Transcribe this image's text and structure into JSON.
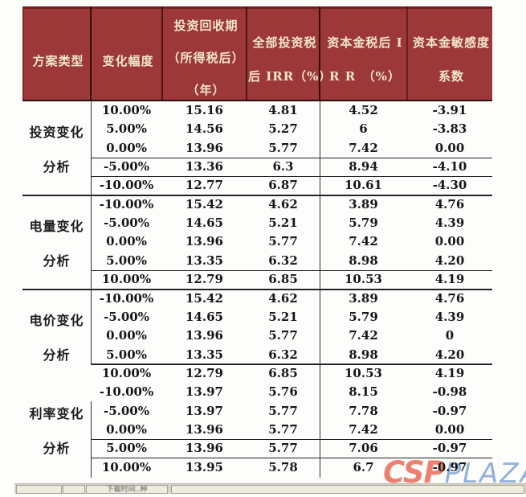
{
  "table": {
    "columns": [
      {
        "lines": [
          "方案类型"
        ]
      },
      {
        "lines": [
          "变化幅度"
        ]
      },
      {
        "lines": [
          "投资回收期",
          "（所得税后）",
          "（年）"
        ]
      },
      {
        "lines": [
          "全部投资税",
          "后 IRR（%）"
        ]
      },
      {
        "lines": [
          "资本金税后 I",
          "R R　（%）"
        ]
      },
      {
        "lines": [
          "资本金敏感度",
          "系数"
        ]
      }
    ],
    "groups": [
      {
        "label_lines": [
          "投资变化",
          "分析"
        ],
        "rows": [
          [
            "10.00%",
            "15.16",
            "4.81",
            "4.52",
            "-3.91"
          ],
          [
            "5.00%",
            "14.56",
            "5.27",
            "6",
            "-3.83"
          ],
          [
            "0.00%",
            "13.96",
            "5.77",
            "7.42",
            "0.00"
          ],
          [
            "-5.00%",
            "13.36",
            "6.3",
            "8.94",
            "-4.10"
          ],
          [
            "-10.00%",
            "12.77",
            "6.87",
            "10.61",
            "-4.30"
          ]
        ]
      },
      {
        "label_lines": [
          "电量变化",
          "分析"
        ],
        "rows": [
          [
            "-10.00%",
            "15.42",
            "4.62",
            "3.89",
            "4.76"
          ],
          [
            "-5.00%",
            "14.65",
            "5.21",
            "5.79",
            "4.39"
          ],
          [
            "0.00%",
            "13.96",
            "5.77",
            "7.42",
            "0.00"
          ],
          [
            "5.00%",
            "13.35",
            "6.32",
            "8.98",
            "4.20"
          ],
          [
            "10.00%",
            "12.79",
            "6.85",
            "10.53",
            "4.19"
          ]
        ]
      },
      {
        "label_lines": [
          "电价变化",
          "分析"
        ],
        "rows": [
          [
            "-10.00%",
            "15.42",
            "4.62",
            "3.89",
            "4.76"
          ],
          [
            "-5.00%",
            "14.65",
            "5.21",
            "5.79",
            "4.39"
          ],
          [
            "0.00%",
            "13.96",
            "5.77",
            "7.42",
            "0"
          ],
          [
            "5.00%",
            "13.35",
            "6.32",
            "8.98",
            "4.20"
          ],
          [
            "10.00%",
            "12.79",
            "6.85",
            "10.53",
            "4.19"
          ]
        ]
      },
      {
        "label_lines": [
          "利率变化",
          "分析"
        ],
        "rows": [
          [
            "-10.00%",
            "13.97",
            "5.76",
            "8.15",
            "-0.98"
          ],
          [
            "-5.00%",
            "13.97",
            "5.77",
            "7.78",
            "-0.97"
          ],
          [
            "0.00%",
            "13.96",
            "5.77",
            "7.42",
            "0.00"
          ],
          [
            "5.00%",
            "13.96",
            "5.77",
            "7.06",
            "-0.97"
          ],
          [
            "10.00%",
            "13.95",
            "5.78",
            "6.7",
            "-0.97"
          ]
        ]
      }
    ]
  },
  "watermark": {
    "csp": "CSP",
    "plaza": "PLAZA"
  },
  "statusbar": {
    "box3_text": "下载时间‥种"
  },
  "colors": {
    "header_bg": "#9d3838",
    "header_text": "#f0e6cb",
    "body_text": "#161616",
    "ruling": "#262626",
    "watermark_csp": "#ec8170",
    "watermark_plaza": "#93b1da",
    "statusbar_bg": "#d8d4c7"
  }
}
